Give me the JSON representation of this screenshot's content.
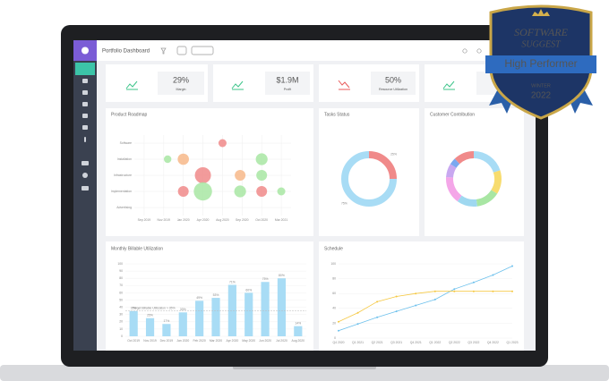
{
  "header": {
    "title": "Portfolio Dashboard"
  },
  "kpis": [
    {
      "value": "29%",
      "label": "Margin"
    },
    {
      "value": "$1.9M",
      "label": "Profit"
    },
    {
      "value": "50%",
      "label": "Resource Utilization"
    }
  ],
  "badge": {
    "brand_top": "SOFTWARE",
    "brand_bottom": "SUGGEST",
    "title": "High Performer",
    "season": "WINTER",
    "year": "2022"
  },
  "roadmap": {
    "type": "scatter",
    "title": "Product Roadmap",
    "points": [
      {
        "x": 4,
        "y": 4,
        "size": 1.5,
        "color": "#f08a8a"
      },
      {
        "x": 1.2,
        "y": 3,
        "size": 1.4,
        "color": "#a8e6a3"
      },
      {
        "x": 2,
        "y": 3,
        "size": 2.1,
        "color": "#f7b98a"
      },
      {
        "x": 6,
        "y": 3,
        "size": 2.2,
        "color": "#a8e6a3"
      },
      {
        "x": 3,
        "y": 2,
        "size": 3.0,
        "color": "#f08a8a"
      },
      {
        "x": 4.9,
        "y": 2,
        "size": 2.0,
        "color": "#f7b98a"
      },
      {
        "x": 6,
        "y": 2,
        "size": 2.0,
        "color": "#a8e6a3"
      },
      {
        "x": 2,
        "y": 1,
        "size": 2.0,
        "color": "#f08a8a"
      },
      {
        "x": 3,
        "y": 1,
        "size": 3.4,
        "color": "#a8e6a3"
      },
      {
        "x": 4.9,
        "y": 1,
        "size": 2.2,
        "color": "#a8e6a3"
      },
      {
        "x": 6,
        "y": 1,
        "size": 2.0,
        "color": "#f08a8a"
      },
      {
        "x": 7,
        "y": 1,
        "size": 1.5,
        "color": "#a8e6a3"
      }
    ],
    "xlim": [
      -0.5,
      7.5
    ],
    "xticks": [
      {
        "value": 0,
        "label": "Sep 2019"
      },
      {
        "value": 1,
        "label": "Nov 2019"
      },
      {
        "value": 2,
        "label": "Jan 2020"
      },
      {
        "value": 3,
        "label": "Apr 2020"
      },
      {
        "value": 4,
        "label": "Aug 2020"
      },
      {
        "value": 5,
        "label": "Sep 2020"
      },
      {
        "value": 6,
        "label": "Oct 2020"
      },
      {
        "value": 7,
        "label": "Mar 2021"
      }
    ],
    "ylim": [
      -0.5,
      4.5
    ],
    "yticks": [
      {
        "value": 0,
        "label": "Advertising"
      },
      {
        "value": 1,
        "label": "Implementation"
      },
      {
        "value": 2,
        "label": "Infrastructure"
      },
      {
        "value": 3,
        "label": "Installation"
      },
      {
        "value": 4,
        "label": "Software"
      }
    ],
    "grid": true
  },
  "tasks": {
    "type": "donut",
    "title": "Tasks Status",
    "values": [
      25,
      75
    ],
    "value_labels": [
      "25%",
      "75%"
    ],
    "colors": [
      "#f08a8a",
      "#a8dcf5"
    ]
  },
  "customers": {
    "type": "donut",
    "title": "Customer Contribution",
    "values": [
      20,
      14,
      14,
      12,
      16,
      8,
      4,
      12
    ],
    "colors": [
      "#a8dcf5",
      "#f7dc6f",
      "#a8e6a3",
      "#9fd8f0",
      "#f4a6e8",
      "#c8a8f0",
      "#7aa8f0",
      "#f08a8a"
    ]
  },
  "billable": {
    "type": "bar",
    "title": "Monthly Billable Utilization",
    "categories": [
      "Oct 2019",
      "Nov 2019",
      "Dec 2019",
      "Jan 2020",
      "Feb 2020",
      "Mar 2020",
      "Apr 2020",
      "May 2020",
      "Jun 2020",
      "Jul 2020",
      "Aug 2020"
    ],
    "values": [
      35,
      25,
      17,
      33,
      49,
      53,
      71,
      60,
      75,
      80,
      14
    ],
    "value_labels": [
      "35%",
      "25%",
      "17%",
      "33%",
      "49%",
      "53%",
      "71%",
      "60%",
      "75%",
      "80%",
      "14%"
    ],
    "color": "#a8dcf5",
    "target": 35,
    "target_label": "Target Billable Utilization > 35%",
    "ylim": [
      0,
      100
    ],
    "yticks": [
      0,
      10,
      20,
      30,
      40,
      50,
      60,
      70,
      80,
      90,
      100
    ],
    "grid": true
  },
  "schedule": {
    "type": "line",
    "title": "Schedule",
    "categories": [
      "Q4 2020",
      "Q1 2021",
      "Q2 2021",
      "Q3 2021",
      "Q4 2021",
      "Q1 2022",
      "Q2 2022",
      "Q3 2022",
      "Q4 2022",
      "Q1 2023"
    ],
    "series": [
      {
        "color": "#6cc0ec",
        "values": [
          10,
          19,
          28,
          36,
          44,
          52,
          66,
          75,
          85,
          97
        ]
      },
      {
        "color": "#f5c842",
        "values": [
          22,
          34,
          49,
          56,
          60,
          63,
          63,
          63,
          63,
          63
        ]
      }
    ],
    "ylim": [
      0,
      100
    ],
    "yticks": [
      0,
      20,
      40,
      60,
      80,
      100
    ],
    "grid": true
  }
}
